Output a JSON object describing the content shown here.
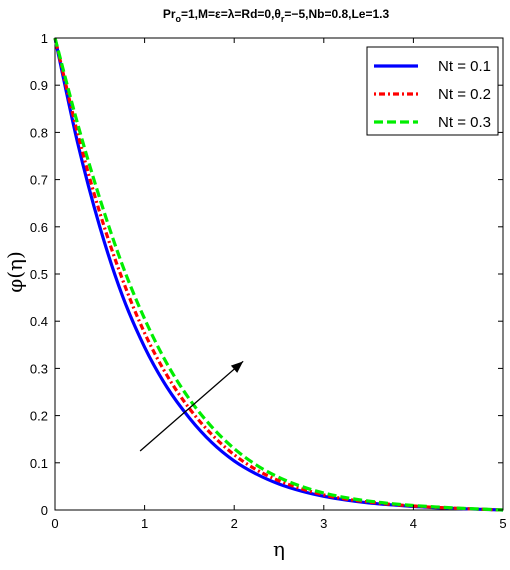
{
  "chart_data": {
    "type": "line",
    "title_parts": {
      "p1": "Pr",
      "p1_sub": "o",
      "p2": "=1,M=ε=λ=Rd=0,θ",
      "p2_sub": "r",
      "p3": "=−5,Nb=0.8,Le=1.3"
    },
    "xlabel": "η",
    "ylabel": "φ(η)",
    "xlim": [
      0,
      5
    ],
    "ylim": [
      0,
      1
    ],
    "xticks": [
      0,
      1,
      2,
      3,
      4,
      5
    ],
    "yticks": [
      0,
      0.1,
      0.2,
      0.3,
      0.4,
      0.5,
      0.6,
      0.7,
      0.8,
      0.9,
      1
    ],
    "grid": false,
    "legend_position": "top-right",
    "x": [
      0,
      0.25,
      0.5,
      0.75,
      1,
      1.25,
      1.5,
      1.75,
      2,
      2.25,
      2.5,
      2.75,
      3,
      3.25,
      3.5,
      3.75,
      4,
      4.25,
      4.5,
      4.75,
      5
    ],
    "series": [
      {
        "name": "Nt = 0.1",
        "color": "#0000ff",
        "dash": "solid",
        "values": [
          1.0,
          0.78,
          0.6,
          0.455,
          0.345,
          0.26,
          0.195,
          0.143,
          0.104,
          0.076,
          0.055,
          0.04,
          0.029,
          0.021,
          0.015,
          0.011,
          0.0075,
          0.005,
          0.003,
          0.0015,
          0
        ]
      },
      {
        "name": "Nt = 0.2",
        "color": "#ff0000",
        "dash": "dashdot",
        "values": [
          1.0,
          0.8,
          0.63,
          0.49,
          0.375,
          0.285,
          0.215,
          0.16,
          0.117,
          0.085,
          0.062,
          0.045,
          0.032,
          0.023,
          0.017,
          0.012,
          0.0085,
          0.0055,
          0.0035,
          0.0017,
          0
        ]
      },
      {
        "name": "Nt = 0.3",
        "color": "#00ee00",
        "dash": "dashed",
        "values": [
          1.0,
          0.82,
          0.66,
          0.52,
          0.405,
          0.31,
          0.235,
          0.176,
          0.13,
          0.095,
          0.069,
          0.05,
          0.036,
          0.026,
          0.019,
          0.0135,
          0.0095,
          0.0065,
          0.004,
          0.002,
          0
        ]
      }
    ],
    "arrow": {
      "from": [
        0.95,
        0.125
      ],
      "to": [
        2.1,
        0.315
      ]
    }
  }
}
